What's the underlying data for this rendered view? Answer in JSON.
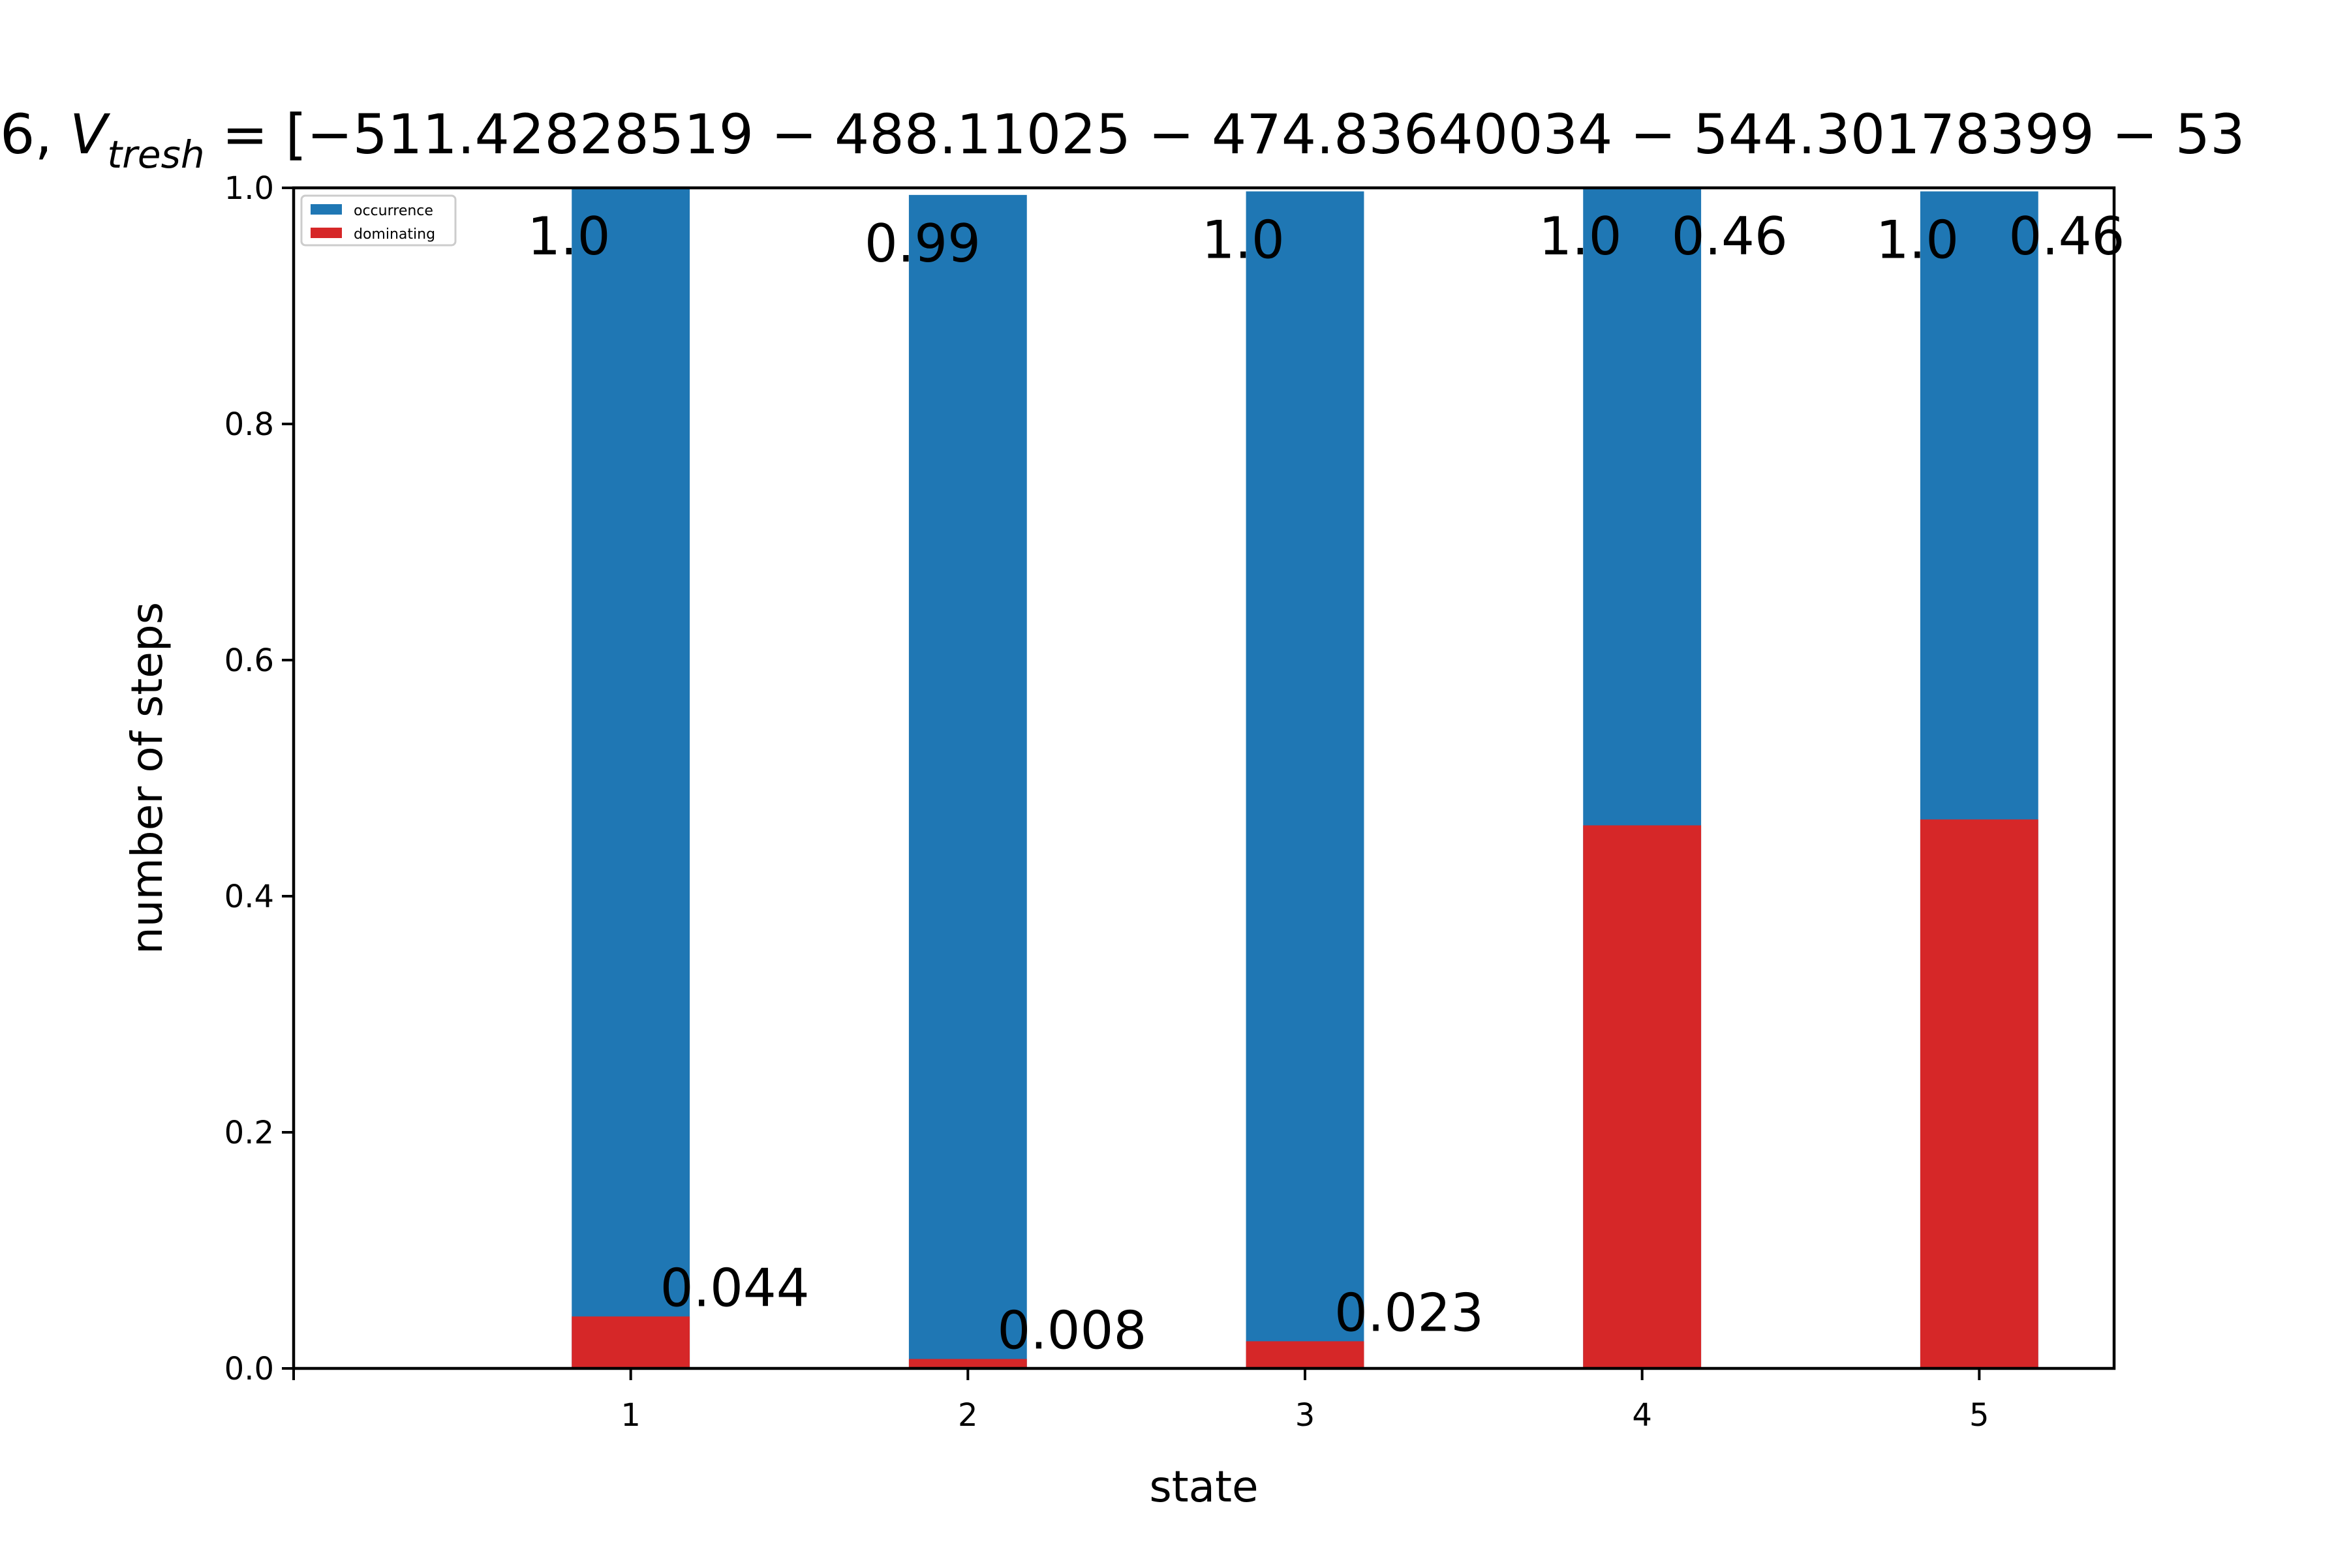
{
  "chart_data": {
    "type": "bar",
    "title": "6, V_tresh = [−511.42828519 − 488.11025 − 474.83640034 − 544.30178399 − 53",
    "title_parts": {
      "prefix": "6, ",
      "v": "V",
      "sub": "tresh",
      "rest": " = [−511.42828519 − 488.11025 − 474.83640034 − 544.30178399 − 53"
    },
    "xlabel": "state",
    "ylabel": "number of steps",
    "x_ticks": [
      "1",
      "2",
      "3",
      "4",
      "5"
    ],
    "y_ticks": [
      "0.0",
      "0.2",
      "0.4",
      "0.6",
      "0.8",
      "1.0"
    ],
    "xlim": [
      0,
      5.4
    ],
    "ylim": [
      0,
      1.0
    ],
    "categories": [
      1,
      2,
      3,
      4,
      5
    ],
    "series": [
      {
        "name": "occurrence",
        "color": "#1f77b4",
        "values": [
          1.0,
          0.994,
          0.997,
          1.0,
          0.997
        ],
        "labels": [
          "1.0",
          "0.99",
          "1.0",
          "1.0",
          "1.0"
        ]
      },
      {
        "name": "dominating",
        "color": "#d62728",
        "values": [
          0.044,
          0.008,
          0.023,
          0.46,
          0.465
        ],
        "labels": [
          "0.044",
          "0.008",
          "0.023",
          "0.46",
          "0.46"
        ]
      }
    ],
    "legend": {
      "position": "top-left",
      "entries": [
        "occurrence",
        "dominating"
      ]
    },
    "grid": false
  }
}
